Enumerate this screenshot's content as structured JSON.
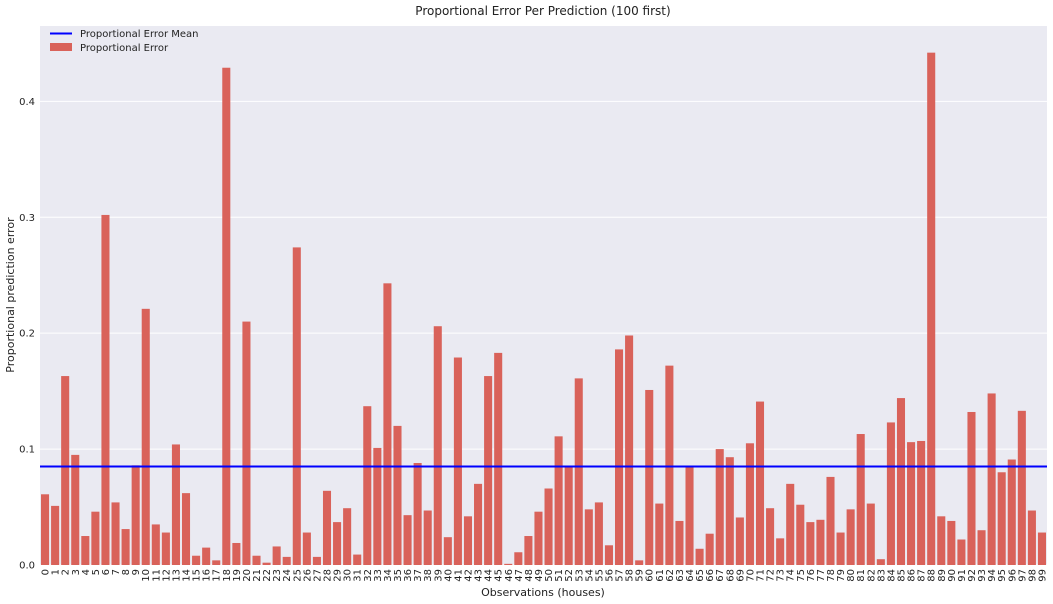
{
  "chart_data": {
    "type": "bar",
    "title": "Proportional Error Per Prediction (100 first)",
    "xlabel": "Observations (houses)",
    "ylabel": "Proportional prediction error",
    "ylim": [
      0,
      0.465
    ],
    "yticks": [
      "0.0",
      "0.1",
      "0.2",
      "0.3",
      "0.4"
    ],
    "grid": true,
    "legend_position": "top-left",
    "categories": [
      "0",
      "1",
      "2",
      "3",
      "4",
      "5",
      "6",
      "7",
      "8",
      "9",
      "10",
      "11",
      "12",
      "13",
      "14",
      "15",
      "16",
      "17",
      "18",
      "19",
      "20",
      "21",
      "22",
      "23",
      "24",
      "25",
      "26",
      "27",
      "28",
      "29",
      "30",
      "31",
      "32",
      "33",
      "34",
      "35",
      "36",
      "37",
      "38",
      "39",
      "40",
      "41",
      "42",
      "43",
      "44",
      "45",
      "46",
      "47",
      "48",
      "49",
      "50",
      "51",
      "52",
      "53",
      "54",
      "55",
      "56",
      "57",
      "58",
      "59",
      "60",
      "61",
      "62",
      "63",
      "64",
      "65",
      "66",
      "67",
      "68",
      "69",
      "70",
      "71",
      "72",
      "73",
      "74",
      "75",
      "76",
      "77",
      "78",
      "79",
      "80",
      "81",
      "82",
      "83",
      "84",
      "85",
      "86",
      "87",
      "88",
      "89",
      "90",
      "91",
      "92",
      "93",
      "94",
      "95",
      "96",
      "97",
      "98",
      "99"
    ],
    "series": [
      {
        "name": "Proportional Error",
        "color": "#d9625a",
        "values": [
          0.061,
          0.051,
          0.163,
          0.095,
          0.025,
          0.046,
          0.302,
          0.054,
          0.031,
          0.086,
          0.221,
          0.035,
          0.028,
          0.104,
          0.062,
          0.008,
          0.015,
          0.004,
          0.429,
          0.019,
          0.21,
          0.008,
          0.002,
          0.016,
          0.007,
          0.274,
          0.028,
          0.007,
          0.064,
          0.037,
          0.049,
          0.009,
          0.137,
          0.101,
          0.243,
          0.12,
          0.043,
          0.088,
          0.047,
          0.206,
          0.024,
          0.179,
          0.042,
          0.07,
          0.163,
          0.183,
          0.001,
          0.011,
          0.025,
          0.046,
          0.066,
          0.111,
          0.085,
          0.161,
          0.048,
          0.054,
          0.017,
          0.186,
          0.198,
          0.004,
          0.151,
          0.053,
          0.172,
          0.038,
          0.085,
          0.014,
          0.027,
          0.1,
          0.093,
          0.041,
          0.105,
          0.141,
          0.049,
          0.023,
          0.07,
          0.052,
          0.037,
          0.039,
          0.076,
          0.028,
          0.048,
          0.113,
          0.053,
          0.005,
          0.123,
          0.144,
          0.106,
          0.107,
          0.442,
          0.042,
          0.038,
          0.022,
          0.132,
          0.03,
          0.148,
          0.08,
          0.091,
          0.133,
          0.047,
          0.028
        ]
      }
    ],
    "mean_line": {
      "name": "Proportional Error Mean",
      "value": 0.085,
      "color": "#0000ff"
    }
  }
}
